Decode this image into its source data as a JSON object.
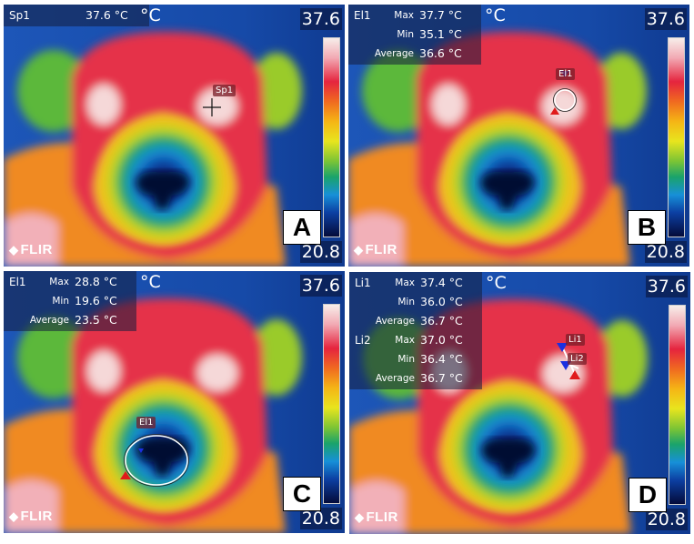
{
  "figure": {
    "scale": {
      "max": "37.6",
      "min": "20.8",
      "unit": "°C"
    },
    "logo": "FLIR",
    "panels": [
      {
        "letter": "A",
        "readouts": [
          {
            "tool": "Sp1",
            "rows": [
              {
                "label": "",
                "value": "37.6 °C"
              }
            ]
          }
        ],
        "marker_labels": [
          "Sp1"
        ],
        "tool_type": "spot"
      },
      {
        "letter": "B",
        "readouts": [
          {
            "tool": "El1",
            "rows": [
              {
                "label": "Max",
                "value": "37.7 °C"
              },
              {
                "label": "Min",
                "value": "35.1 °C"
              },
              {
                "label": "Average",
                "value": "36.6 °C"
              }
            ]
          }
        ],
        "marker_labels": [
          "El1"
        ],
        "tool_type": "ellipse-eye"
      },
      {
        "letter": "C",
        "readouts": [
          {
            "tool": "El1",
            "rows": [
              {
                "label": "Max",
                "value": "28.8 °C"
              },
              {
                "label": "Min",
                "value": "19.6 °C"
              },
              {
                "label": "Average",
                "value": "23.5 °C"
              }
            ]
          }
        ],
        "marker_labels": [
          "El1"
        ],
        "tool_type": "ellipse-nose"
      },
      {
        "letter": "D",
        "readouts": [
          {
            "tool": "Li1",
            "rows": [
              {
                "label": "Max",
                "value": "37.4 °C"
              },
              {
                "label": "Min",
                "value": "36.0 °C"
              },
              {
                "label": "Average",
                "value": "36.7 °C"
              }
            ]
          },
          {
            "tool": "Li2",
            "rows": [
              {
                "label": "Max",
                "value": "37.0 °C"
              },
              {
                "label": "Min",
                "value": "36.4 °C"
              },
              {
                "label": "Average",
                "value": "36.7 °C"
              }
            ]
          }
        ],
        "marker_labels": [
          "Li1",
          "Li2"
        ],
        "tool_type": "lines"
      }
    ],
    "palette": {
      "hot": "#f7eeea",
      "red": "#e5243e",
      "yellow": "#e8e51e",
      "green": "#1aa36b",
      "blue": "#1790d8",
      "cold": "#040b3a"
    }
  }
}
